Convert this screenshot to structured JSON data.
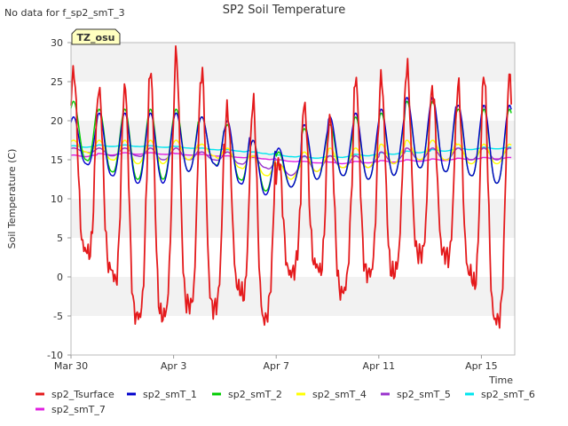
{
  "header": {
    "no_data_note": "No data for f_sp2_smT_3",
    "badge": "TZ_osu"
  },
  "chart_data": {
    "type": "line",
    "title": "SP2 Soil Temperature",
    "xlabel": "Time",
    "ylabel": "Soil Temperature (C)",
    "ylim": [
      -10,
      30
    ],
    "xlim_days": [
      0,
      17.3
    ],
    "y_ticks": [
      -10,
      -5,
      0,
      5,
      10,
      15,
      20,
      25,
      30
    ],
    "x_ticks": [
      {
        "label": "Mar 30",
        "day": 0
      },
      {
        "label": "Apr 3",
        "day": 4
      },
      {
        "label": "Apr 7",
        "day": 8
      },
      {
        "label": "Apr 11",
        "day": 12
      },
      {
        "label": "Apr 15",
        "day": 16
      }
    ],
    "grid": "alternating horizontal bands",
    "legend_position": "bottom",
    "series": [
      {
        "name": "sp2_Tsurface",
        "color": "#e41a1c",
        "daily_max": [
          26.5,
          24.0,
          24.5,
          26.5,
          28.5,
          26.5,
          21.5,
          22.5,
          15.0,
          22.0,
          20.5,
          25.5,
          25.5,
          27.0,
          24.0,
          24.5,
          26.0
        ],
        "daily_min": [
          3.5,
          1.0,
          -5.0,
          -5.0,
          -3.5,
          -4.0,
          -1.5,
          -5.5,
          0.5,
          1.5,
          -2.0,
          0.5,
          0.5,
          3.0,
          3.0,
          0.5,
          -5.5
        ]
      },
      {
        "name": "sp2_smT_1",
        "color": "#0000cc",
        "daily_max": [
          20.5,
          21.0,
          21.0,
          21.0,
          21.0,
          20.5,
          20.0,
          17.5,
          16.5,
          19.5,
          20.5,
          21.0,
          21.5,
          23.0,
          23.0,
          22.0,
          22.0
        ],
        "daily_min": [
          14.5,
          13.0,
          12.0,
          12.0,
          13.5,
          14.5,
          12.0,
          10.5,
          11.5,
          12.5,
          13.0,
          12.5,
          13.0,
          14.0,
          13.5,
          13.0,
          12.0
        ]
      },
      {
        "name": "sp2_smT_2",
        "color": "#00cc00",
        "daily_max": [
          22.5,
          21.5,
          21.5,
          21.5,
          21.5,
          20.5,
          19.5,
          17.5,
          16.0,
          19.0,
          19.5,
          20.5,
          21.0,
          22.5,
          22.5,
          21.5,
          21.5
        ],
        "daily_min": [
          15.0,
          13.5,
          12.5,
          12.5,
          13.5,
          14.5,
          12.5,
          11.0,
          11.5,
          12.5,
          13.0,
          12.5,
          13.0,
          14.0,
          13.5,
          13.0,
          12.0
        ]
      },
      {
        "name": "sp2_smT_4",
        "color": "#ffff00",
        "daily_max": [
          17.5,
          17.5,
          17.5,
          17.5,
          17.5,
          17.0,
          16.5,
          15.5,
          14.5,
          16.0,
          16.5,
          16.5,
          17.0,
          17.5,
          17.5,
          17.0,
          17.0
        ],
        "daily_min": [
          16.0,
          15.0,
          14.5,
          14.5,
          15.0,
          15.5,
          14.0,
          13.0,
          12.5,
          13.5,
          14.0,
          14.0,
          14.5,
          15.0,
          15.0,
          14.5,
          14.5
        ]
      },
      {
        "name": "sp2_smT_5",
        "color": "#9932cc",
        "daily_max": [
          16.5,
          16.5,
          16.5,
          16.5,
          16.5,
          16.0,
          16.0,
          15.5,
          14.5,
          15.5,
          15.5,
          15.5,
          16.0,
          16.5,
          16.5,
          16.5,
          16.5
        ],
        "daily_min": [
          16.0,
          15.5,
          15.5,
          15.0,
          15.0,
          15.0,
          14.5,
          14.0,
          13.0,
          13.5,
          14.0,
          14.0,
          14.5,
          15.0,
          15.0,
          15.0,
          15.0
        ]
      },
      {
        "name": "sp2_smT_6",
        "color": "#00e5ee",
        "daily_max": [
          16.8,
          16.9,
          16.9,
          16.8,
          16.7,
          16.5,
          16.3,
          16.0,
          15.6,
          15.4,
          15.5,
          15.7,
          15.9,
          16.1,
          16.3,
          16.5,
          16.6
        ],
        "daily_min": [
          16.6,
          16.7,
          16.7,
          16.6,
          16.5,
          16.3,
          16.1,
          15.8,
          15.4,
          15.2,
          15.3,
          15.5,
          15.7,
          15.9,
          16.1,
          16.3,
          16.4
        ]
      },
      {
        "name": "sp2_smT_7",
        "color": "#e020e0",
        "daily_max": [
          15.6,
          15.8,
          15.9,
          15.9,
          15.8,
          15.7,
          15.5,
          15.3,
          15.0,
          14.8,
          14.7,
          14.8,
          14.9,
          15.0,
          15.1,
          15.2,
          15.3
        ],
        "daily_min": [
          15.4,
          15.6,
          15.7,
          15.7,
          15.6,
          15.5,
          15.3,
          15.1,
          14.8,
          14.6,
          14.5,
          14.6,
          14.7,
          14.8,
          14.9,
          15.0,
          15.1
        ]
      }
    ]
  }
}
